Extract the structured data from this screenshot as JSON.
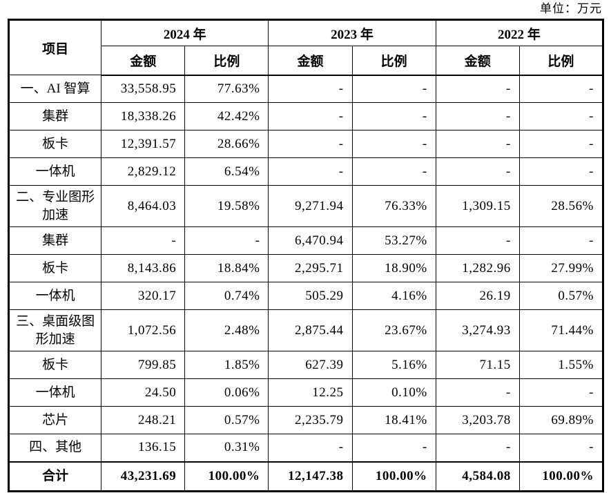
{
  "unit_label": "单位：万元",
  "table": {
    "headers": {
      "item": "项目",
      "amount": "金额",
      "ratio": "比例",
      "years": [
        "2024 年",
        "2023 年",
        "2022 年"
      ]
    },
    "rows": [
      {
        "item": "一、AI 智算",
        "values": [
          "33,558.95",
          "77.63%",
          "-",
          "-",
          "-",
          "-"
        ],
        "tall": false,
        "bold": false
      },
      {
        "item": "集群",
        "values": [
          "18,338.26",
          "42.42%",
          "-",
          "-",
          "-",
          "-"
        ],
        "tall": false,
        "bold": false
      },
      {
        "item": "板卡",
        "values": [
          "12,391.57",
          "28.66%",
          "-",
          "-",
          "-",
          "-"
        ],
        "tall": false,
        "bold": false
      },
      {
        "item": "一体机",
        "values": [
          "2,829.12",
          "6.54%",
          "-",
          "-",
          "-",
          "-"
        ],
        "tall": false,
        "bold": false
      },
      {
        "item": "二、专业图形加速",
        "values": [
          "8,464.03",
          "19.58%",
          "9,271.94",
          "76.33%",
          "1,309.15",
          "28.56%"
        ],
        "tall": true,
        "bold": false
      },
      {
        "item": "集群",
        "values": [
          "-",
          "-",
          "6,470.94",
          "53.27%",
          "-",
          "-"
        ],
        "tall": false,
        "bold": false
      },
      {
        "item": "板卡",
        "values": [
          "8,143.86",
          "18.84%",
          "2,295.71",
          "18.90%",
          "1,282.96",
          "27.99%"
        ],
        "tall": false,
        "bold": false
      },
      {
        "item": "一体机",
        "values": [
          "320.17",
          "0.74%",
          "505.29",
          "4.16%",
          "26.19",
          "0.57%"
        ],
        "tall": false,
        "bold": false
      },
      {
        "item": "三、桌面级图形加速",
        "values": [
          "1,072.56",
          "2.48%",
          "2,875.44",
          "23.67%",
          "3,274.93",
          "71.44%"
        ],
        "tall": true,
        "bold": false
      },
      {
        "item": "板卡",
        "values": [
          "799.85",
          "1.85%",
          "627.39",
          "5.16%",
          "71.15",
          "1.55%"
        ],
        "tall": false,
        "bold": false
      },
      {
        "item": "一体机",
        "values": [
          "24.50",
          "0.06%",
          "12.25",
          "0.10%",
          "-",
          "-"
        ],
        "tall": false,
        "bold": false
      },
      {
        "item": "芯片",
        "values": [
          "248.21",
          "0.57%",
          "2,235.79",
          "18.41%",
          "3,203.78",
          "69.89%"
        ],
        "tall": false,
        "bold": false
      },
      {
        "item": "四、其他",
        "values": [
          "136.15",
          "0.31%",
          "-",
          "-",
          "-",
          "-"
        ],
        "tall": false,
        "bold": false
      },
      {
        "item": "合计",
        "values": [
          "43,231.69",
          "100.00%",
          "12,147.38",
          "100.00%",
          "4,584.08",
          "100.00%"
        ],
        "tall": false,
        "bold": true,
        "total": true
      }
    ],
    "colors": {
      "border": "#000000",
      "text": "#000000",
      "background": "#ffffff"
    }
  }
}
